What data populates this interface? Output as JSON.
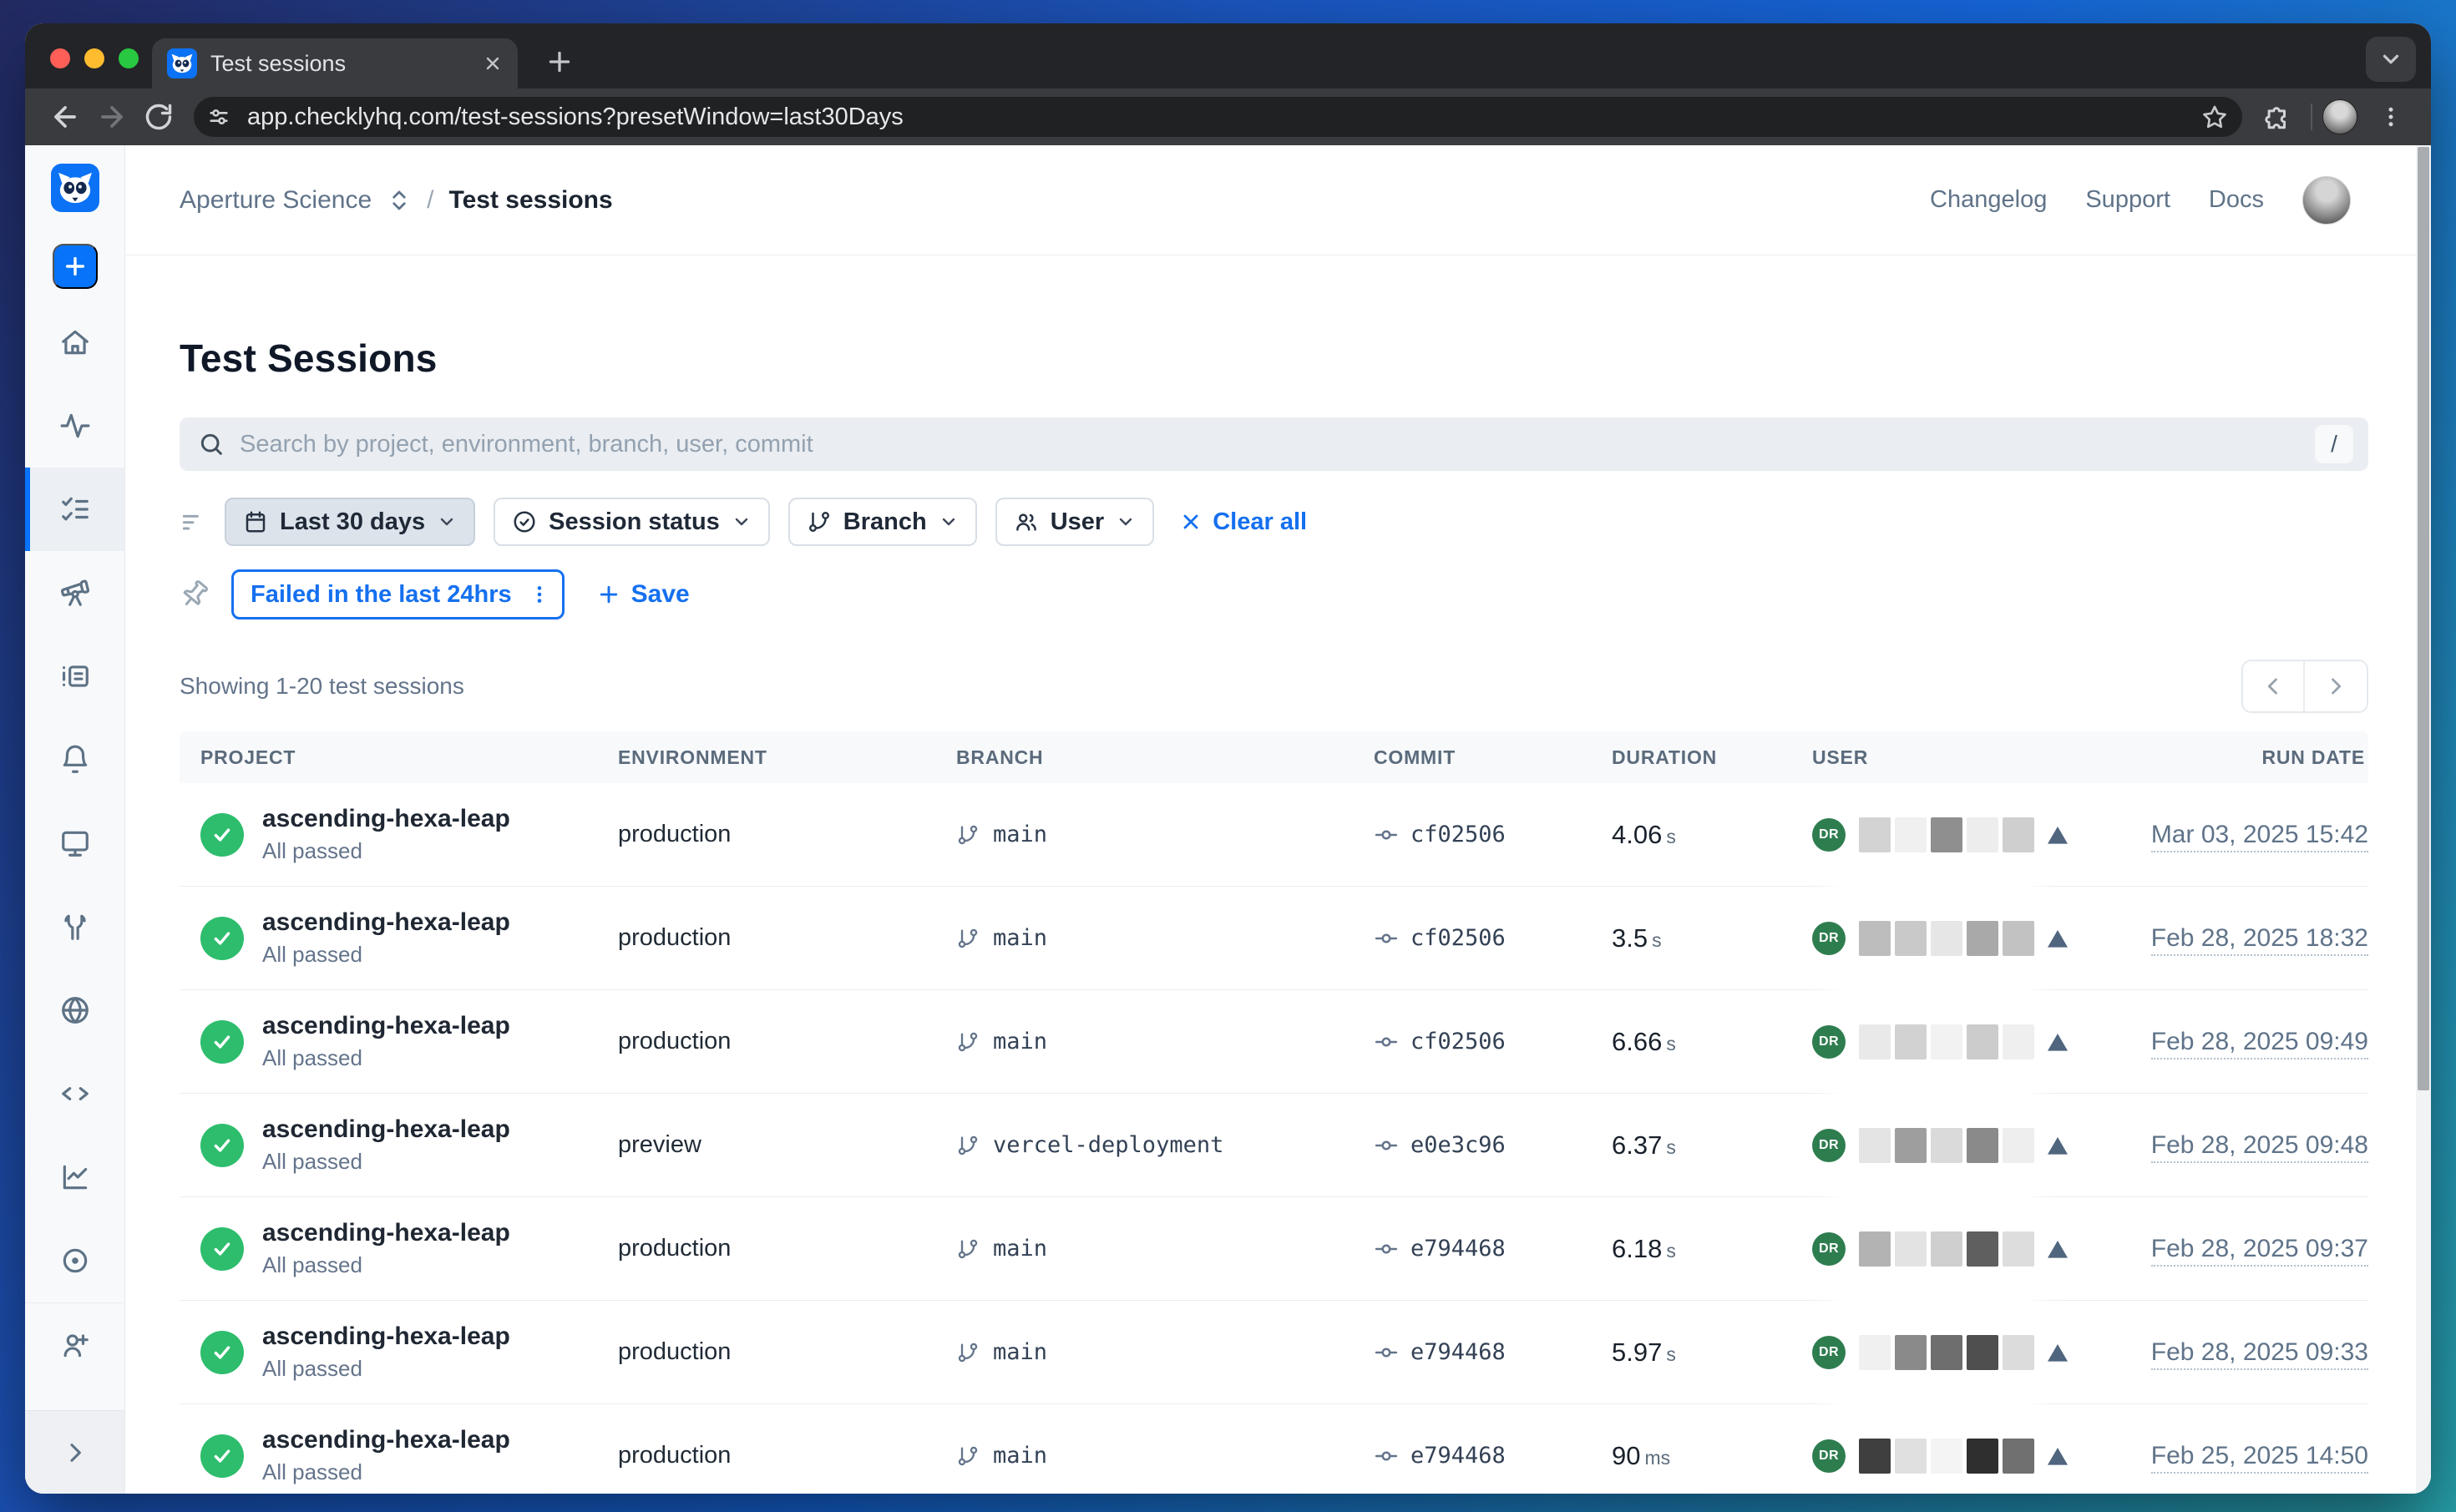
{
  "browser": {
    "tab_title": "Test sessions",
    "url": "app.checklyhq.com/test-sessions?presetWindow=last30Days"
  },
  "topnav": {
    "account": "Aperture Science",
    "separator": "/",
    "page": "Test sessions",
    "links": {
      "changelog": "Changelog",
      "support": "Support",
      "docs": "Docs"
    }
  },
  "page": {
    "title": "Test Sessions",
    "search": {
      "placeholder": "Search by project, environment, branch, user, commit",
      "shortcut": "/"
    },
    "filters": {
      "date_range": "Last 30 days",
      "session_status": "Session status",
      "branch": "Branch",
      "user": "User",
      "clear_all": "Clear all",
      "saved_filter": "Failed in the last 24hrs",
      "save": "Save"
    },
    "results_summary": "Showing 1-20 test sessions"
  },
  "table": {
    "columns": [
      "PROJECT",
      "ENVIRONMENT",
      "BRANCH",
      "COMMIT",
      "DURATION",
      "USER",
      "RUN DATE"
    ],
    "rows": [
      {
        "project": "ascending-hexa-leap",
        "status": "All passed",
        "environment": "production",
        "branch": "main",
        "commit": "cf02506",
        "duration": "4.06",
        "duration_unit": "s",
        "user_initials": "DR",
        "run_date": "Mar 03, 2025 15:42",
        "censor": [
          "#d3d3d3",
          "#f0f0f0",
          "#8f8f8f",
          "#ededed",
          "#cfcfcf"
        ]
      },
      {
        "project": "ascending-hexa-leap",
        "status": "All passed",
        "environment": "production",
        "branch": "main",
        "commit": "cf02506",
        "duration": "3.5",
        "duration_unit": "s",
        "user_initials": "DR",
        "run_date": "Feb 28, 2025 18:32",
        "censor": [
          "#bdbdbd",
          "#c9c9c9",
          "#e6e6e6",
          "#a9a9a9",
          "#c2c2c2"
        ]
      },
      {
        "project": "ascending-hexa-leap",
        "status": "All passed",
        "environment": "production",
        "branch": "main",
        "commit": "cf02506",
        "duration": "6.66",
        "duration_unit": "s",
        "user_initials": "DR",
        "run_date": "Feb 28, 2025 09:49",
        "censor": [
          "#e9e9e9",
          "#d2d2d2",
          "#f2f2f2",
          "#cccccc",
          "#efefef"
        ]
      },
      {
        "project": "ascending-hexa-leap",
        "status": "All passed",
        "environment": "preview",
        "branch": "vercel-deployment",
        "commit": "e0e3c96",
        "duration": "6.37",
        "duration_unit": "s",
        "user_initials": "DR",
        "run_date": "Feb 28, 2025 09:48",
        "censor": [
          "#e4e4e4",
          "#9e9e9e",
          "#dadada",
          "#8a8a8a",
          "#eeeeee"
        ]
      },
      {
        "project": "ascending-hexa-leap",
        "status": "All passed",
        "environment": "production",
        "branch": "main",
        "commit": "e794468",
        "duration": "6.18",
        "duration_unit": "s",
        "user_initials": "DR",
        "run_date": "Feb 28, 2025 09:37",
        "censor": [
          "#b3b3b3",
          "#e3e3e3",
          "#cfcfcf",
          "#5f5f5f",
          "#dddddd"
        ]
      },
      {
        "project": "ascending-hexa-leap",
        "status": "All passed",
        "environment": "production",
        "branch": "main",
        "commit": "e794468",
        "duration": "5.97",
        "duration_unit": "s",
        "user_initials": "DR",
        "run_date": "Feb 28, 2025 09:33",
        "censor": [
          "#f0f0f0",
          "#8a8a8a",
          "#6e6e6e",
          "#4f4f4f",
          "#dcdcdc"
        ]
      },
      {
        "project": "ascending-hexa-leap",
        "status": "All passed",
        "environment": "production",
        "branch": "main",
        "commit": "e794468",
        "duration": "90",
        "duration_unit": "ms",
        "user_initials": "DR",
        "run_date": "Feb 25, 2025 14:50",
        "censor": [
          "#3f3f3f",
          "#e0e0e0",
          "#f4f4f4",
          "#2f2f2f",
          "#707070"
        ]
      }
    ]
  },
  "colors": {
    "accent_blue": "#0673f9",
    "link_blue": "#1570ef",
    "pass_green": "#2dbd6d",
    "avatar_green": "#2e7d4f",
    "vercel_triangle": "#50657e"
  }
}
